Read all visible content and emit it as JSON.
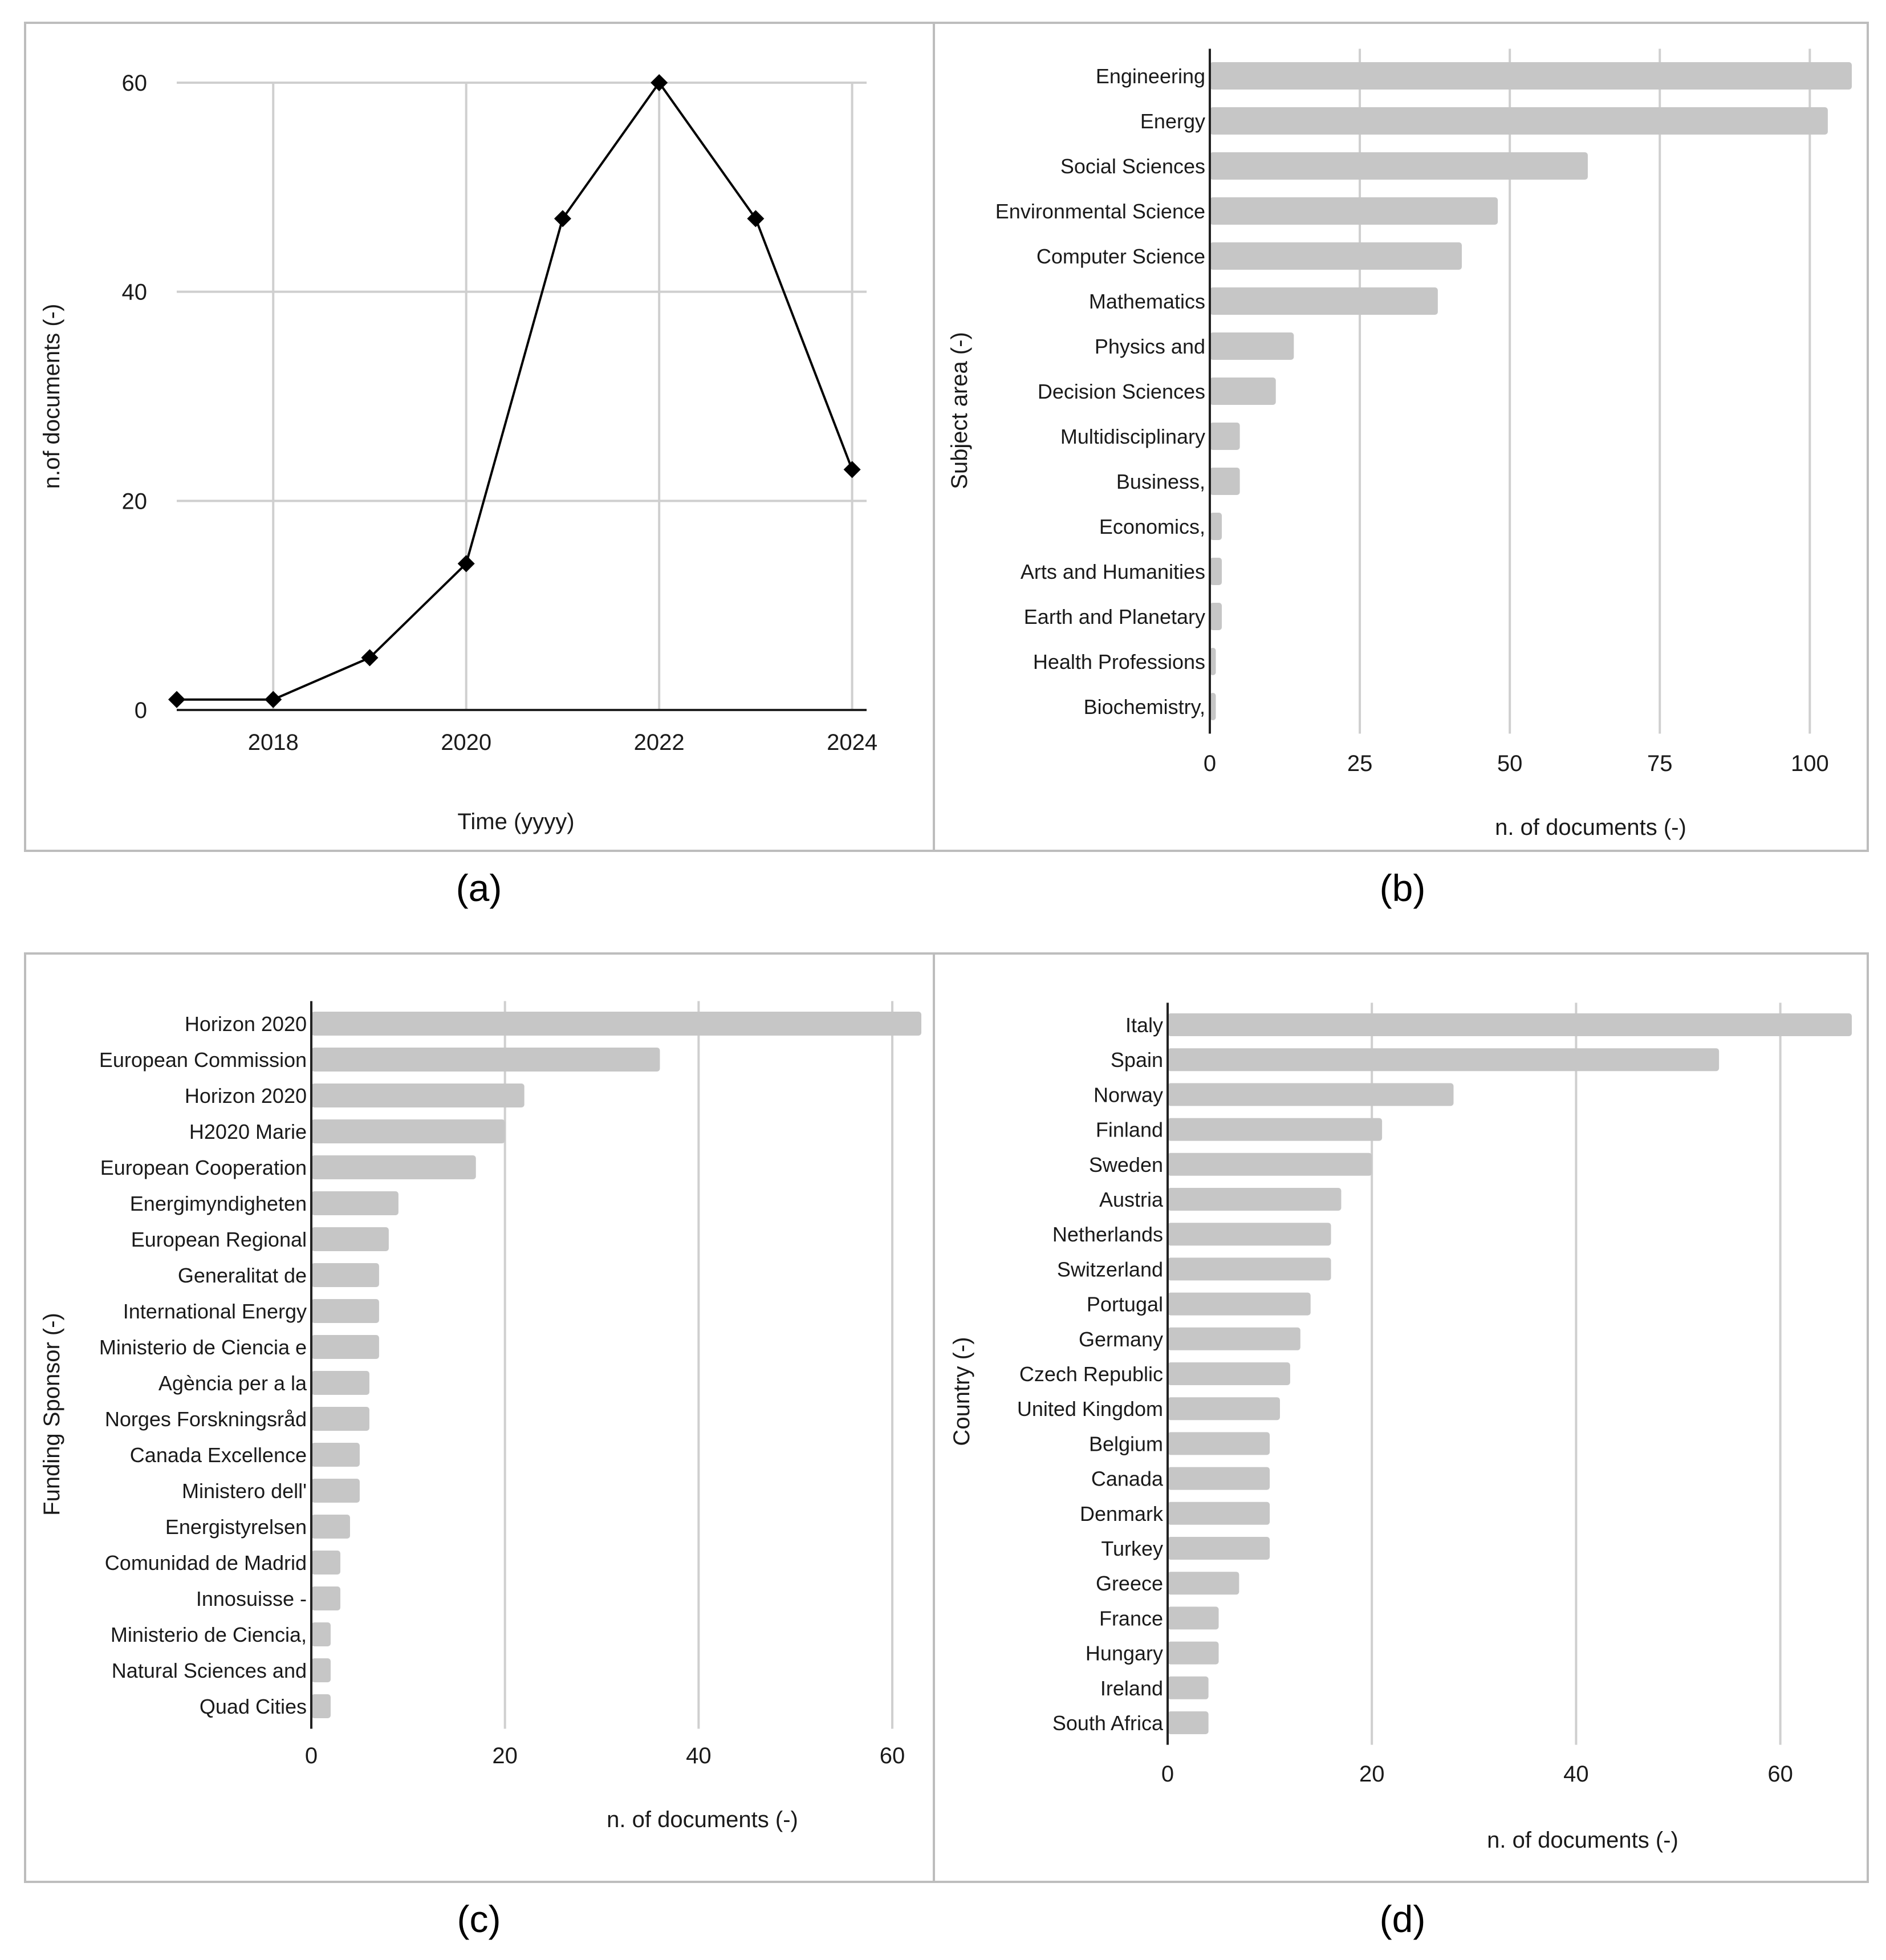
{
  "colors": {
    "bar": "#c6c6c6",
    "line": "#000000",
    "grid": "#cfcfcf",
    "frame": "#bdbdbd"
  },
  "panel_labels": [
    "(a)",
    "(b)",
    "(c)",
    "(d)"
  ],
  "chart_data": [
    {
      "panel": "(a)",
      "type": "line",
      "x": [
        2017,
        2018,
        2019,
        2020,
        2021,
        2022,
        2023,
        2024
      ],
      "values": [
        1,
        1,
        5,
        14,
        47,
        60,
        47,
        23
      ],
      "xticks": [
        "2018",
        "2020",
        "2022",
        "2024"
      ],
      "xtick_values": [
        2018,
        2020,
        2022,
        2024
      ],
      "yticks": [
        "0",
        "20",
        "40",
        "60"
      ],
      "ytick_values": [
        0,
        20,
        40,
        60
      ],
      "xlim": [
        2017,
        2024.15
      ],
      "ylim": [
        0,
        60
      ],
      "xlabel": "Time (yyyy)",
      "ylabel": "n.of documents (-)",
      "marker": "diamond",
      "grid": true
    },
    {
      "panel": "(b)",
      "type": "bar",
      "orientation": "horizontal",
      "categories": [
        "Engineering",
        "Energy",
        "Social Sciences",
        "Environmental Science",
        "Computer Science",
        "Mathematics",
        "Physics and",
        "Decision Sciences",
        "Multidisciplinary",
        "Business,",
        "Economics,",
        "Arts and Humanities",
        "Earth and Planetary",
        "Health Professions",
        "Biochemistry,"
      ],
      "values": [
        107,
        103,
        63,
        48,
        42,
        38,
        14,
        11,
        5,
        5,
        2,
        2,
        2,
        1,
        1
      ],
      "xticks": [
        "0",
        "25",
        "50",
        "75",
        "100"
      ],
      "xtick_values": [
        0,
        25,
        50,
        75,
        100
      ],
      "xlim": [
        0,
        107
      ],
      "xlabel": "n. of documents (-)",
      "ylabel": "Subject area (-)",
      "grid": true
    },
    {
      "panel": "(c)",
      "type": "bar",
      "orientation": "horizontal",
      "categories": [
        "Horizon 2020",
        "European Commission",
        "Horizon 2020",
        "H2020 Marie",
        "European Cooperation",
        "Energimyndigheten",
        "European Regional",
        "Generalitat de",
        "International Energy",
        "Ministerio de Ciencia e",
        "Agència per a la",
        "Norges Forskningsråd",
        "Canada Excellence",
        "Ministero dell'",
        "Energistyrelsen",
        "Comunidad de Madrid",
        "Innosuisse -",
        "Ministerio de Ciencia,",
        "Natural Sciences and",
        "Quad Cities"
      ],
      "values": [
        63,
        36,
        22,
        20,
        17,
        9,
        8,
        7,
        7,
        7,
        6,
        6,
        5,
        5,
        4,
        3,
        3,
        2,
        2,
        2
      ],
      "xticks": [
        "0",
        "20",
        "40",
        "60"
      ],
      "xtick_values": [
        0,
        20,
        40,
        60
      ],
      "xlim": [
        0,
        63
      ],
      "xlabel": "n. of documents (-)",
      "ylabel": "Funding Sponsor (-)",
      "grid": true
    },
    {
      "panel": "(d)",
      "type": "bar",
      "orientation": "horizontal",
      "categories": [
        "Italy",
        "Spain",
        "Norway",
        "Finland",
        "Sweden",
        "Austria",
        "Netherlands",
        "Switzerland",
        "Portugal",
        "Germany",
        "Czech Republic",
        "United Kingdom",
        "Belgium",
        "Canada",
        "Denmark",
        "Turkey",
        "Greece",
        "France",
        "Hungary",
        "Ireland",
        "South Africa"
      ],
      "values": [
        67,
        54,
        28,
        21,
        20,
        17,
        16,
        16,
        14,
        13,
        12,
        11,
        10,
        10,
        10,
        10,
        7,
        5,
        5,
        4,
        4
      ],
      "xticks": [
        "0",
        "20",
        "40",
        "60"
      ],
      "xtick_values": [
        0,
        20,
        40,
        60
      ],
      "xlim": [
        0,
        67
      ],
      "xlabel": "n. of documents (-)",
      "ylabel": "Country (-)",
      "grid": true
    }
  ]
}
